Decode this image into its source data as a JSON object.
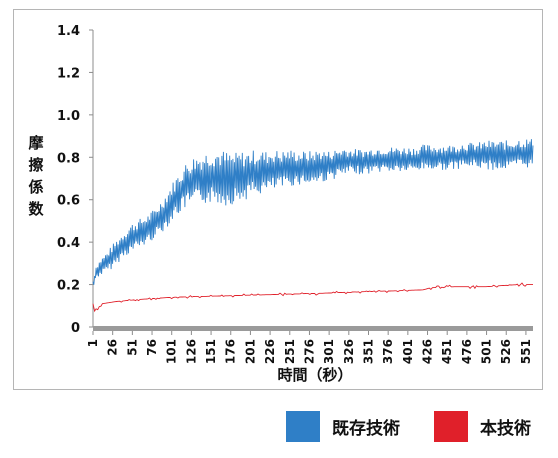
{
  "chart_data": {
    "type": "line",
    "xlabel": "時間（秒）",
    "ylabel": "摩擦係数",
    "ylim": [
      0,
      1.4
    ],
    "yticks": [
      0,
      0.2,
      0.4,
      0.6,
      0.8,
      1.0,
      1.2,
      1.4
    ],
    "ytick_labels": [
      "0",
      "0.2",
      "0.4",
      "0.6",
      "0.8",
      "1.0",
      "1.2",
      "1.4"
    ],
    "xlim": [
      1,
      560
    ],
    "xticks": [
      1,
      26,
      51,
      76,
      101,
      126,
      151,
      176,
      201,
      226,
      251,
      276,
      301,
      326,
      351,
      376,
      401,
      426,
      451,
      476,
      501,
      526,
      551
    ],
    "grid": false,
    "legend_position": "bottom-right",
    "series": [
      {
        "name": "既存技術",
        "color": "#2f7fc7",
        "x": [
          1,
          5,
          10,
          20,
          30,
          40,
          50,
          60,
          70,
          80,
          90,
          100,
          110,
          120,
          130,
          140,
          150,
          160,
          170,
          180,
          190,
          200,
          210,
          220,
          230,
          240,
          250,
          260,
          270,
          280,
          290,
          300,
          310,
          320,
          330,
          340,
          350,
          360,
          370,
          380,
          390,
          400,
          410,
          420,
          430,
          440,
          450,
          460,
          470,
          480,
          490,
          500,
          510,
          520,
          530,
          540,
          550,
          560
        ],
        "center": [
          0.2,
          0.26,
          0.28,
          0.31,
          0.35,
          0.39,
          0.42,
          0.44,
          0.46,
          0.49,
          0.53,
          0.58,
          0.63,
          0.67,
          0.69,
          0.7,
          0.71,
          0.71,
          0.7,
          0.7,
          0.71,
          0.72,
          0.73,
          0.73,
          0.74,
          0.74,
          0.75,
          0.75,
          0.75,
          0.75,
          0.76,
          0.76,
          0.77,
          0.78,
          0.78,
          0.78,
          0.78,
          0.79,
          0.79,
          0.79,
          0.79,
          0.79,
          0.79,
          0.8,
          0.8,
          0.8,
          0.8,
          0.8,
          0.81,
          0.81,
          0.81,
          0.81,
          0.81,
          0.81,
          0.81,
          0.82,
          0.82,
          0.82
        ],
        "spread": [
          0.02,
          0.03,
          0.04,
          0.05,
          0.06,
          0.06,
          0.07,
          0.07,
          0.07,
          0.07,
          0.08,
          0.09,
          0.1,
          0.11,
          0.12,
          0.12,
          0.13,
          0.13,
          0.13,
          0.12,
          0.12,
          0.11,
          0.11,
          0.1,
          0.1,
          0.09,
          0.09,
          0.08,
          0.08,
          0.08,
          0.08,
          0.07,
          0.07,
          0.07,
          0.06,
          0.06,
          0.06,
          0.06,
          0.06,
          0.06,
          0.06,
          0.06,
          0.06,
          0.06,
          0.06,
          0.06,
          0.06,
          0.06,
          0.06,
          0.06,
          0.06,
          0.07,
          0.07,
          0.07,
          0.07,
          0.07,
          0.07,
          0.07
        ]
      },
      {
        "name": "本技術",
        "color": "#e0202a",
        "x": [
          1,
          3,
          8,
          13,
          30,
          60,
          100,
          150,
          200,
          250,
          300,
          330,
          380,
          420,
          430,
          460,
          500,
          540,
          560
        ],
        "center": [
          0.11,
          0.09,
          0.08,
          0.11,
          0.12,
          0.13,
          0.14,
          0.145,
          0.15,
          0.155,
          0.16,
          0.165,
          0.17,
          0.175,
          0.185,
          0.19,
          0.19,
          0.2,
          0.2
        ],
        "spread": [
          0.02,
          0.02,
          0.02,
          0.01,
          0.006,
          0.007,
          0.008,
          0.008,
          0.008,
          0.008,
          0.008,
          0.008,
          0.008,
          0.008,
          0.008,
          0.008,
          0.008,
          0.008,
          0.008
        ]
      }
    ]
  }
}
